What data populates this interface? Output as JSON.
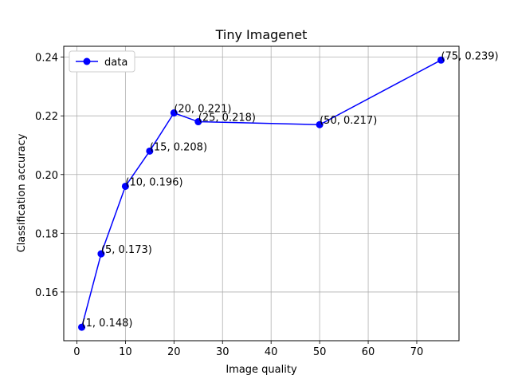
{
  "chart_data": {
    "type": "line",
    "title": "Tiny Imagenet",
    "xlabel": "Image quality",
    "ylabel": "Classification accuracy",
    "xlim": [
      -2.7,
      78.7
    ],
    "ylim": [
      0.1434,
      0.2437
    ],
    "xticks": [
      0,
      10,
      20,
      30,
      40,
      50,
      60,
      70
    ],
    "yticks": [
      0.16,
      0.18,
      0.2,
      0.22,
      0.24
    ],
    "xtick_labels": [
      "0",
      "10",
      "20",
      "30",
      "40",
      "50",
      "60",
      "70"
    ],
    "ytick_labels": [
      "0.16",
      "0.18",
      "0.20",
      "0.22",
      "0.24"
    ],
    "grid": true,
    "legend_position": "upper-left",
    "series": [
      {
        "name": "data",
        "color": "#0000ff",
        "marker": "circle",
        "x": [
          1,
          5,
          10,
          15,
          20,
          25,
          50,
          75
        ],
        "y": [
          0.148,
          0.173,
          0.196,
          0.208,
          0.221,
          0.218,
          0.217,
          0.239
        ],
        "labels": [
          "(1, 0.148)",
          "(5, 0.173)",
          "(10, 0.196)",
          "(15, 0.208)",
          "(20, 0.221)",
          "(25, 0.218)",
          "(50, 0.217)",
          "(75, 0.239)"
        ]
      }
    ]
  }
}
